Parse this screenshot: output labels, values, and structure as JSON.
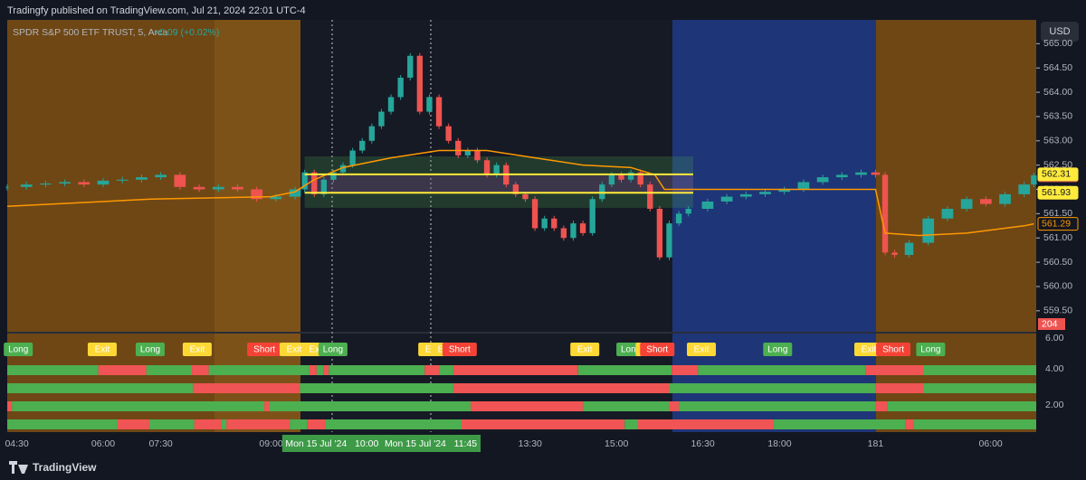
{
  "header": {
    "title": "Tradingfy published on TradingView.com, Jul 21, 2024 22:01 UTC-4",
    "currency": "USD"
  },
  "footer": {
    "brand": "TradingView"
  },
  "chart_data": [
    {
      "type": "candlestick",
      "title": "SPDR S&P 500 ETF TRUST, 5, Arca",
      "subtitle": "+0.09 (+0.02%)",
      "up_color": "#26a69a",
      "down_color": "#ef5350",
      "grid": false,
      "xlim": [
        0,
        214.5
      ],
      "xticks": [
        {
          "value": 2,
          "label": "04:30"
        },
        {
          "value": 20,
          "label": "06:00"
        },
        {
          "value": 32,
          "label": "07:30"
        },
        {
          "value": 55,
          "label": "09:00"
        },
        {
          "value": 109,
          "label": "13:30"
        },
        {
          "value": 127,
          "label": "15:00"
        },
        {
          "value": 145,
          "label": "16:30"
        },
        {
          "value": 161,
          "label": "18:00"
        },
        181,
        {
          "value": 205,
          "label": "06:00"
        }
      ],
      "crosshair_labels": [
        {
          "value": 67.7,
          "label": "Mon 15 Jul '24   10:00"
        },
        {
          "value": 88.3,
          "label": "Mon 15 Jul '24   11:45"
        }
      ],
      "ylim": [
        559.05,
        565.49
      ],
      "yticks": [
        {
          "value": 559.5,
          "label": "559.50"
        },
        {
          "value": 560,
          "label": "560.00"
        },
        {
          "value": 560.5,
          "label": "560.50"
        },
        {
          "value": 561,
          "label": "561.00"
        },
        {
          "value": 561.5,
          "label": "561.50"
        },
        {
          "value": 562,
          "label": "562.00"
        },
        {
          "value": 562.5,
          "label": "562.50"
        },
        {
          "value": 563,
          "label": "563.00"
        },
        {
          "value": 563.5,
          "label": "563.50"
        },
        {
          "value": 564,
          "label": "564.00"
        },
        {
          "value": 564.5,
          "label": "564.50"
        },
        {
          "value": 565,
          "label": "565.00"
        }
      ],
      "x": [
        0,
        4,
        8,
        12,
        16,
        20,
        24,
        28,
        32,
        36,
        40,
        44,
        48,
        52,
        56,
        60,
        62,
        64,
        66,
        68,
        70,
        72,
        74,
        76,
        78,
        80,
        82,
        84,
        86,
        88,
        90,
        92,
        94,
        96,
        98,
        100,
        102,
        104,
        106,
        108,
        110,
        112,
        114,
        116,
        118,
        120,
        122,
        124,
        126,
        128,
        130,
        132,
        134,
        136,
        138,
        140,
        142,
        146,
        150,
        154,
        158,
        162,
        166,
        170,
        174,
        178,
        181,
        183,
        185,
        188,
        192,
        196,
        200,
        204,
        208,
        212,
        214
      ],
      "close": [
        562.05,
        562.1,
        562.12,
        562.15,
        562.1,
        562.18,
        562.2,
        562.25,
        562.3,
        562.05,
        562.0,
        562.05,
        562.0,
        561.8,
        561.85,
        562.0,
        562.35,
        561.9,
        562.2,
        562.35,
        562.5,
        562.8,
        563.0,
        563.3,
        563.6,
        563.9,
        564.3,
        564.75,
        563.6,
        563.9,
        563.3,
        563.0,
        562.7,
        562.8,
        562.6,
        562.3,
        562.5,
        562.1,
        561.9,
        561.8,
        561.2,
        561.4,
        561.2,
        561.0,
        561.3,
        561.1,
        561.8,
        562.1,
        562.3,
        562.2,
        562.35,
        562.1,
        561.6,
        560.6,
        561.3,
        561.5,
        561.6,
        561.75,
        561.85,
        561.9,
        561.95,
        562.0,
        562.15,
        562.25,
        562.3,
        562.35,
        562.3,
        560.7,
        560.65,
        560.9,
        561.4,
        561.6,
        561.8,
        561.7,
        561.9,
        562.1,
        562.29
      ],
      "vwap": {
        "color": "#ff9800",
        "x": [
          0,
          30,
          55,
          60,
          64,
          70,
          80,
          90,
          100,
          110,
          120,
          130,
          135,
          137,
          150,
          181,
          183,
          190,
          200,
          212,
          214
        ],
        "values": [
          561.65,
          561.8,
          561.85,
          561.95,
          562.2,
          562.45,
          562.65,
          562.8,
          562.8,
          562.65,
          562.5,
          562.45,
          562.3,
          562.0,
          562.0,
          562.0,
          561.1,
          561.05,
          561.1,
          561.25,
          561.29
        ]
      },
      "zone_x": [
        62,
        143
      ],
      "zones": [
        {
          "from": 561.62,
          "to": 562.68,
          "color": "#4caf50"
        },
        {
          "from": 561.93,
          "to": 562.31,
          "color": "#9c27b0"
        }
      ],
      "levels": [
        {
          "value": 562.31,
          "label": "562.31",
          "color": "#ffeb3b"
        },
        {
          "value": 561.93,
          "label": "561.93",
          "color": "#ffeb3b"
        }
      ],
      "price_labels": [
        {
          "value": 562.29,
          "label": "562.29",
          "color": "#ef5350"
        },
        {
          "value": 561.29,
          "label": "561.29",
          "color": "#ff9800"
        }
      ],
      "volume_label": {
        "value": 204,
        "label": "204"
      }
    },
    {
      "type": "signals",
      "ylim": [
        0.5,
        6
      ],
      "yticks": [
        {
          "value": 2,
          "label": "2.00"
        },
        {
          "value": 4,
          "label": "4.00"
        },
        {
          "value": 6,
          "label": "6.00"
        }
      ],
      "signals": [
        {
          "x": 2.3,
          "label": "Long",
          "color": "#4caf50"
        },
        {
          "x": 19.8,
          "label": "Exit",
          "color": "#fdd835"
        },
        {
          "x": 29.8,
          "label": "Long",
          "color": "#4caf50"
        },
        {
          "x": 39.6,
          "label": "Exit",
          "color": "#fdd835"
        },
        {
          "x": 53.6,
          "label": "Short",
          "color": "#f44336"
        },
        {
          "x": 59.8,
          "label": "Exit",
          "color": "#fdd835"
        },
        {
          "x": 64.5,
          "label": "Exit",
          "color": "#fdd835"
        },
        {
          "x": 67.9,
          "label": "Long",
          "color": "#4caf50"
        },
        {
          "x": 88.7,
          "label": "Exit",
          "color": "#fdd835"
        },
        {
          "x": 91.3,
          "label": "Exit",
          "color": "#fdd835"
        },
        {
          "x": 94.3,
          "label": "Short",
          "color": "#f44336"
        },
        {
          "x": 120.4,
          "label": "Exit",
          "color": "#fdd835"
        },
        {
          "x": 130,
          "label": "Long",
          "color": "#4caf50"
        },
        {
          "x": 134,
          "label": "Exit",
          "color": "#fdd835"
        },
        {
          "x": 135.5,
          "label": "Short",
          "color": "#f44336"
        },
        {
          "x": 144.7,
          "label": "Exit",
          "color": "#fdd835"
        },
        {
          "x": 160.6,
          "label": "Long",
          "color": "#4caf50"
        },
        {
          "x": 179.6,
          "label": "Exit",
          "color": "#fdd835"
        },
        {
          "x": 184.7,
          "label": "Short",
          "color": "#f44336"
        },
        {
          "x": 192.5,
          "label": "Long",
          "color": "#4caf50"
        }
      ],
      "strips": [
        [
          {
            "from": 0,
            "to": 19,
            "color": "#4caf50"
          },
          {
            "from": 19,
            "to": 29,
            "color": "#f05454"
          },
          {
            "from": 29,
            "to": 38.5,
            "color": "#4caf50"
          },
          {
            "from": 38.5,
            "to": 42,
            "color": "#f05454"
          },
          {
            "from": 42,
            "to": 63,
            "color": "#4caf50"
          },
          {
            "from": 63,
            "to": 64.5,
            "color": "#f05454"
          },
          {
            "from": 64.5,
            "to": 66,
            "color": "#4caf50"
          },
          {
            "from": 66,
            "to": 67,
            "color": "#f05454"
          },
          {
            "from": 67,
            "to": 87,
            "color": "#4caf50"
          },
          {
            "from": 87,
            "to": 90,
            "color": "#f05454"
          },
          {
            "from": 90,
            "to": 93,
            "color": "#4caf50"
          },
          {
            "from": 93,
            "to": 119,
            "color": "#f05454"
          },
          {
            "from": 119,
            "to": 138.5,
            "color": "#4caf50"
          },
          {
            "from": 138.5,
            "to": 144,
            "color": "#f05454"
          },
          {
            "from": 144,
            "to": 179,
            "color": "#4caf50"
          },
          {
            "from": 179,
            "to": 191,
            "color": "#f05454"
          },
          {
            "from": 191,
            "to": 214.5,
            "color": "#4caf50"
          }
        ],
        [
          {
            "from": 0,
            "to": 38.7,
            "color": "#4caf50"
          },
          {
            "from": 38.7,
            "to": 61,
            "color": "#f05454"
          },
          {
            "from": 61,
            "to": 93,
            "color": "#4caf50"
          },
          {
            "from": 93,
            "to": 138,
            "color": "#f05454"
          },
          {
            "from": 138,
            "to": 181,
            "color": "#4caf50"
          },
          {
            "from": 181,
            "to": 191,
            "color": "#f05454"
          },
          {
            "from": 191,
            "to": 214.5,
            "color": "#4caf50"
          }
        ],
        [
          {
            "from": 0,
            "to": 1,
            "color": "#f05454"
          },
          {
            "from": 1,
            "to": 53.6,
            "color": "#4caf50"
          },
          {
            "from": 53.6,
            "to": 54.7,
            "color": "#f05454"
          },
          {
            "from": 54.7,
            "to": 96.6,
            "color": "#4caf50"
          },
          {
            "from": 96.6,
            "to": 120,
            "color": "#f05454"
          },
          {
            "from": 120,
            "to": 138,
            "color": "#4caf50"
          },
          {
            "from": 138,
            "to": 140,
            "color": "#f05454"
          },
          {
            "from": 140,
            "to": 181,
            "color": "#4caf50"
          },
          {
            "from": 181,
            "to": 183.5,
            "color": "#f05454"
          },
          {
            "from": 183.5,
            "to": 214.5,
            "color": "#4caf50"
          }
        ],
        [
          {
            "from": 0,
            "to": 23,
            "color": "#4caf50"
          },
          {
            "from": 23,
            "to": 29.6,
            "color": "#f05454"
          },
          {
            "from": 29.6,
            "to": 39,
            "color": "#4caf50"
          },
          {
            "from": 39,
            "to": 44.7,
            "color": "#f05454"
          },
          {
            "from": 44.7,
            "to": 45.7,
            "color": "#4caf50"
          },
          {
            "from": 45.7,
            "to": 58.9,
            "color": "#f05454"
          },
          {
            "from": 58.9,
            "to": 62.6,
            "color": "#4caf50"
          },
          {
            "from": 62.6,
            "to": 66.4,
            "color": "#f05454"
          },
          {
            "from": 66.4,
            "to": 94.7,
            "color": "#4caf50"
          },
          {
            "from": 94.7,
            "to": 128.7,
            "color": "#f05454"
          },
          {
            "from": 128.7,
            "to": 131.5,
            "color": "#4caf50"
          },
          {
            "from": 131.5,
            "to": 159.8,
            "color": "#f05454"
          },
          {
            "from": 159.8,
            "to": 187.2,
            "color": "#4caf50"
          },
          {
            "from": 187.2,
            "to": 189,
            "color": "#f05454"
          },
          {
            "from": 189,
            "to": 214.5,
            "color": "#4caf50"
          }
        ]
      ]
    }
  ]
}
